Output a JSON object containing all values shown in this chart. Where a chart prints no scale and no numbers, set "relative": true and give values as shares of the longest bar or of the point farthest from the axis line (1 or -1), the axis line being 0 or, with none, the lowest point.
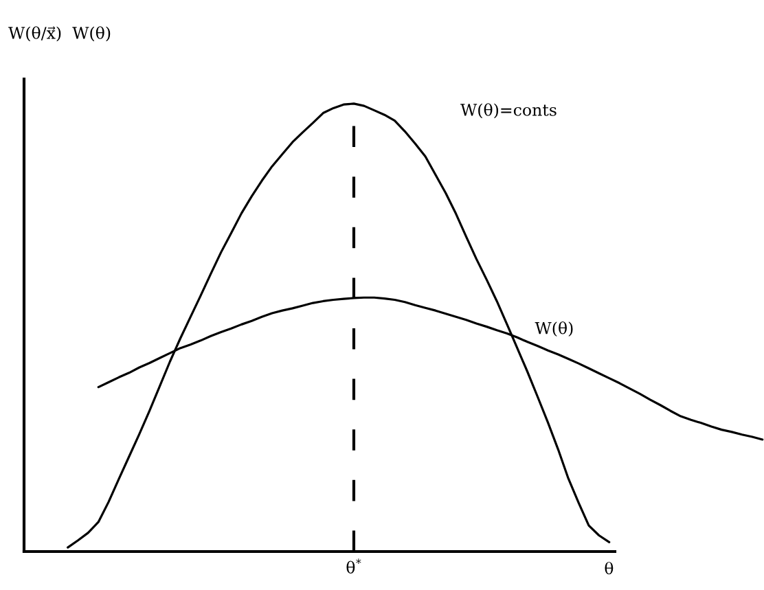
{
  "chart_data": {
    "type": "line",
    "relative": true,
    "ylabel": "W(θ/x⃗)  W(θ)",
    "xlabel": "θ",
    "annotations": [
      "W(θ)=conts",
      "θ$^{*}$"
    ],
    "categories": [
      null,
      null,
      null,
      null,
      null,
      null,
      null,
      null,
      null,
      null,
      null,
      null,
      null,
      null,
      null,
      null,
      null,
      null,
      null,
      null,
      null,
      null,
      null,
      null,
      null,
      null,
      null,
      null,
      null,
      null,
      null,
      null,
      null,
      null,
      null,
      null,
      null,
      null,
      null,
      null,
      null,
      null,
      null,
      null,
      null,
      null,
      null,
      null,
      null,
      null,
      null,
      null,
      null,
      null,
      null,
      null,
      null,
      null,
      null,
      null,
      null,
      null,
      null,
      null,
      null,
      null,
      null,
      null,
      null
    ],
    "series": [
      {
        "color": "#000000",
        "values": [
          0.009,
          0.025,
          0.042,
          0.066,
          0.111,
          0.162,
          0.212,
          0.262,
          0.314,
          0.369,
          0.424,
          0.475,
          0.523,
          0.571,
          0.62,
          0.668,
          0.711,
          0.755,
          0.793,
          0.828,
          0.86,
          0.887,
          0.914,
          0.936,
          0.957,
          0.979,
          0.99,
          0.998,
          1.0,
          0.995,
          0.985,
          0.975,
          0.962,
          0.938,
          0.911,
          0.882,
          0.841,
          0.8,
          0.754,
          0.703,
          0.653,
          0.607,
          0.559,
          0.507,
          0.454,
          0.401,
          0.345,
          0.288,
          0.228,
          0.163,
          0.109,
          0.058,
          0.036,
          0.021,
          null,
          null,
          null,
          null,
          null,
          null,
          null,
          null,
          null,
          null,
          null,
          null,
          null,
          null,
          null
        ]
      },
      {
        "name": "W(θ)",
        "color": "#000000",
        "values": [
          null,
          null,
          null,
          0.367,
          0.378,
          0.389,
          0.399,
          0.411,
          0.421,
          0.432,
          0.443,
          0.454,
          0.462,
          0.471,
          0.481,
          0.49,
          0.498,
          0.507,
          0.515,
          0.524,
          0.532,
          0.538,
          0.543,
          0.549,
          0.555,
          0.559,
          0.562,
          0.564,
          0.566,
          0.567,
          0.567,
          0.565,
          0.562,
          0.557,
          0.55,
          0.544,
          0.538,
          0.531,
          0.524,
          0.517,
          0.509,
          0.502,
          0.494,
          0.487,
          0.478,
          0.468,
          0.459,
          0.449,
          0.44,
          0.43,
          0.42,
          0.409,
          0.398,
          0.387,
          0.376,
          0.364,
          0.352,
          0.339,
          0.327,
          0.314,
          0.302,
          0.294,
          0.287,
          0.279,
          0.272,
          0.267,
          0.261,
          0.256,
          0.25
        ]
      }
    ]
  }
}
